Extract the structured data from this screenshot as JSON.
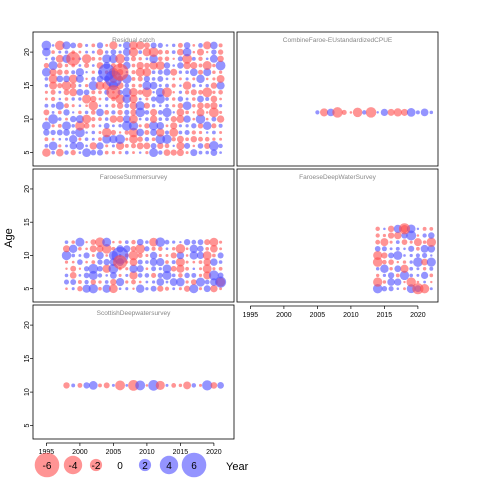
{
  "chart_data": {
    "type": "scatter",
    "subtype": "bubble residual plot",
    "ylabel": "Age",
    "xlabel": "Year",
    "x_ticks": [
      1995,
      2000,
      2005,
      2010,
      2015,
      2020
    ],
    "y_ticks": [
      5,
      10,
      15,
      20
    ],
    "xlim": [
      1993,
      2023
    ],
    "ylim": [
      3,
      23
    ],
    "colors": {
      "negative": "#ff4d4d",
      "positive": "#4d4dff"
    },
    "panels": [
      {
        "title": "Residual catch",
        "year_range": [
          1995,
          2021
        ],
        "age_range": [
          5,
          21
        ],
        "pattern": "dense-mixed",
        "highlight": [
          [
            2004,
            17,
            5
          ],
          [
            2005,
            16,
            5
          ],
          [
            1999,
            19,
            -4
          ],
          [
            2006,
            17,
            -5
          ],
          [
            2005,
            14,
            -4
          ]
        ]
      },
      {
        "title": "CombineFaroe-EUstandardizedCPUE",
        "year_range": [
          2005,
          2022
        ],
        "age_range": [
          11,
          11
        ],
        "pattern": "index-row"
      },
      {
        "title": "FaroeseSummersurvey",
        "year_range": [
          1998,
          2021
        ],
        "age_range": [
          5,
          12
        ],
        "pattern": "dense-mixed",
        "highlight": [
          [
            2006,
            10,
            5
          ],
          [
            2006,
            9,
            -4
          ],
          [
            2021,
            6,
            3
          ]
        ]
      },
      {
        "title": "FaroeseDeepWaterSurvey",
        "year_range": [
          2014,
          2022
        ],
        "age_range": [
          5,
          14
        ],
        "pattern": "dense-mixed",
        "highlight": [
          [
            2018,
            14,
            -3
          ],
          [
            2020,
            5,
            -3
          ]
        ]
      },
      {
        "title": "ScottishDeepwatersurvey",
        "year_range": [
          1998,
          2021
        ],
        "age_range": [
          11,
          11
        ],
        "pattern": "index-row"
      }
    ],
    "legend": {
      "values": [
        -6,
        -4,
        -2,
        0,
        2,
        4,
        6
      ],
      "labels": [
        "-6",
        "-4",
        "-2",
        "0",
        "2",
        "4",
        "6"
      ]
    }
  }
}
